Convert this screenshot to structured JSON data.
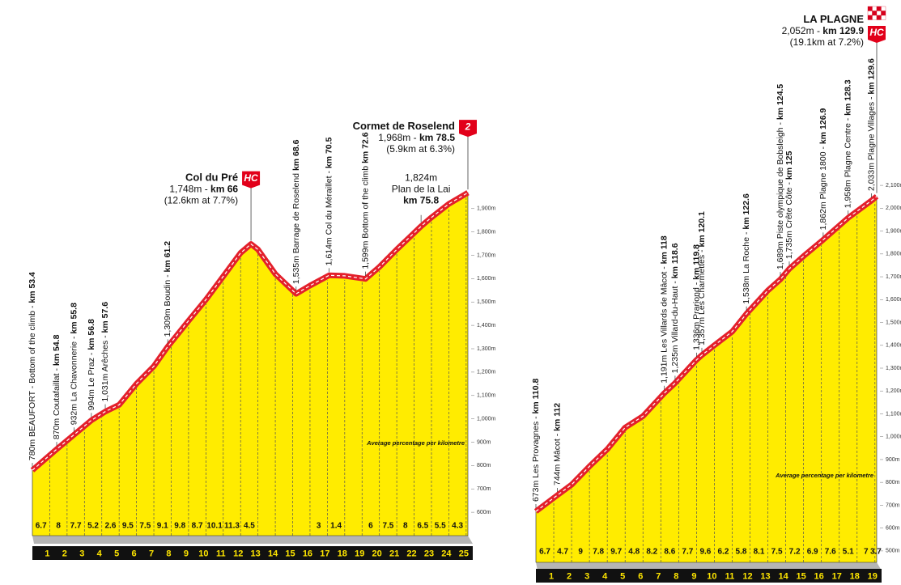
{
  "chart_data": [
    {
      "type": "profile",
      "fill_color": "#ffec00",
      "line_color": "#e3202b",
      "xlim": [
        53.4,
        78.5
      ],
      "ylim": [
        500,
        2100
      ],
      "yticks": [
        {
          "value": 600,
          "label": "600m"
        },
        {
          "value": 700,
          "label": "700m"
        },
        {
          "value": 800,
          "label": "800m"
        },
        {
          "value": 900,
          "label": "900m"
        },
        {
          "value": 1000,
          "label": "1,000m"
        },
        {
          "value": 1100,
          "label": "1,100m"
        },
        {
          "value": 1200,
          "label": "1,200m"
        },
        {
          "value": 1300,
          "label": "1,300m"
        },
        {
          "value": 1400,
          "label": "1,400m"
        },
        {
          "value": 1500,
          "label": "1,500m"
        },
        {
          "value": 1600,
          "label": "1,600m"
        },
        {
          "value": 1700,
          "label": "1,700m"
        },
        {
          "value": 1800,
          "label": "1,800m"
        },
        {
          "value": 1900,
          "label": "1,900m"
        }
      ],
      "x": [
        53.4,
        54.8,
        55.8,
        56.8,
        57.6,
        58.4,
        59.4,
        60.4,
        61.2,
        62.4,
        63.4,
        64.4,
        65.4,
        66,
        66.4,
        67.4,
        68.6,
        69.4,
        70.5,
        71.4,
        72.6,
        73.4,
        74.4,
        75.8,
        76.4,
        77.4,
        78.5
      ],
      "values": [
        780,
        870,
        932,
        994,
        1031,
        1060,
        1150,
        1225,
        1309,
        1420,
        1510,
        1610,
        1710,
        1748,
        1725,
        1620,
        1535,
        1570,
        1614,
        1612,
        1599,
        1650,
        1725,
        1824,
        1862,
        1920,
        1968
      ],
      "categories": [
        "1",
        "2",
        "3",
        "4",
        "5",
        "6",
        "7",
        "8",
        "9",
        "10",
        "11",
        "12",
        "13",
        "14",
        "15",
        "16",
        "17",
        "18",
        "19",
        "20",
        "21",
        "22",
        "23",
        "24",
        "25"
      ],
      "gradients": [
        6.7,
        8,
        7.7,
        5.2,
        2.6,
        9.5,
        7.5,
        9.1,
        9.8,
        8.7,
        10.1,
        11.3,
        4.5,
        null,
        null,
        null,
        3,
        1.4,
        null,
        6,
        7.5,
        8,
        6.5,
        5.5,
        4.3
      ],
      "gradient_note": "Average percentage per kilometre",
      "waypoints": [
        {
          "x": 53.4,
          "elevation": 780,
          "label": "780m BEAUFORT - Bottom of the climb - ",
          "km": "km 53.4"
        },
        {
          "x": 54.8,
          "elevation": 870,
          "label": "870m Coutafaillat - ",
          "km": "km 54.8"
        },
        {
          "x": 55.8,
          "elevation": 932,
          "label": "932m La Chavonnerie - ",
          "km": "km 55.8"
        },
        {
          "x": 56.8,
          "elevation": 994,
          "label": "994m Le Praz - ",
          "km": "km 56.8"
        },
        {
          "x": 57.6,
          "elevation": 1031,
          "label": "1,031m Arêches - ",
          "km": "km 57.6"
        },
        {
          "x": 61.2,
          "elevation": 1309,
          "label": "1,309m Boudin - ",
          "km": "km 61.2"
        },
        {
          "x": 68.6,
          "elevation": 1535,
          "label": "1,535m Barrage de Roselend ",
          "km": "km 68.6"
        },
        {
          "x": 70.5,
          "elevation": 1614,
          "label": "1,614m Col du Méraillet - ",
          "km": "km 70.5"
        },
        {
          "x": 72.6,
          "elevation": 1599,
          "label": "1,599m Bottom of the climb ",
          "km": "km 72.6"
        }
      ],
      "flat_labels": [
        {
          "x": 75.8,
          "elevation": 1824,
          "lines": [
            "1,824m",
            "Plan de la Lai"
          ],
          "km": "km 75.8"
        }
      ],
      "summits": [
        {
          "x": 66,
          "elevation": 1748,
          "name": "Col du Pré",
          "detail": "1,748m - ",
          "km": "km 66",
          "climb": "(12.6km at 7.7%)",
          "category": "HC"
        },
        {
          "x": 78.5,
          "elevation": 1968,
          "name": "Cormet de Roselend",
          "detail": "1,968m - ",
          "km": "km 78.5",
          "climb": "(5.9km at 6.3%)",
          "category": "2"
        }
      ]
    },
    {
      "type": "profile",
      "fill_color": "#ffec00",
      "line_color": "#e3202b",
      "xlim": [
        110.8,
        129.9
      ],
      "ylim": [
        450,
        2150
      ],
      "yticks": [
        {
          "value": 500,
          "label": "500m"
        },
        {
          "value": 600,
          "label": "600m"
        },
        {
          "value": 700,
          "label": "700m"
        },
        {
          "value": 800,
          "label": "800m"
        },
        {
          "value": 900,
          "label": "900m"
        },
        {
          "value": 1000,
          "label": "1,000m"
        },
        {
          "value": 1100,
          "label": "1,100m"
        },
        {
          "value": 1200,
          "label": "1,200m"
        },
        {
          "value": 1300,
          "label": "1,300m"
        },
        {
          "value": 1400,
          "label": "1,400m"
        },
        {
          "value": 1500,
          "label": "1,500m"
        },
        {
          "value": 1600,
          "label": "1,600m"
        },
        {
          "value": 1700,
          "label": "1,700m"
        },
        {
          "value": 1800,
          "label": "1,800m"
        },
        {
          "value": 1900,
          "label": "1,900m"
        },
        {
          "value": 2000,
          "label": "2,000m"
        },
        {
          "value": 2100,
          "label": "2,100m"
        }
      ],
      "x": [
        110.8,
        112,
        112.8,
        113.8,
        114.8,
        115.8,
        116.8,
        118,
        118.6,
        119.8,
        120.1,
        120.8,
        121.8,
        122.6,
        123.8,
        124.5,
        125,
        125.8,
        126.9,
        128.3,
        129.6,
        129.9
      ],
      "values": [
        673,
        744,
        790,
        870,
        945,
        1040,
        1090,
        1191,
        1235,
        1336,
        1357,
        1400,
        1460,
        1538,
        1640,
        1689,
        1735,
        1790,
        1862,
        1958,
        2033,
        2052
      ],
      "categories": [
        "1",
        "2",
        "3",
        "4",
        "5",
        "6",
        "7",
        "8",
        "9",
        "10",
        "11",
        "12",
        "13",
        "14",
        "15",
        "16",
        "17",
        "18",
        "19",
        null
      ],
      "gradients": [
        6.7,
        4.7,
        9,
        7.8,
        9.7,
        4.8,
        8.2,
        8.6,
        7.7,
        9.6,
        6.2,
        5.8,
        8.1,
        7.5,
        7.2,
        6.9,
        7.6,
        5.1,
        7,
        3.7
      ],
      "gradient_note": "Average percentage per kilometre",
      "waypoints": [
        {
          "x": 110.8,
          "elevation": 673,
          "label": "673m Les Provagnes - ",
          "km": "km 110.8"
        },
        {
          "x": 112,
          "elevation": 744,
          "label": "744m Mâcot - ",
          "km": "km 112"
        },
        {
          "x": 118,
          "elevation": 1191,
          "label": "1,191m Les Villards de Mâcot - ",
          "km": "km 118"
        },
        {
          "x": 118.6,
          "elevation": 1235,
          "label": "1,235m Villard-du-Haut - ",
          "km": "km 118.6"
        },
        {
          "x": 119.8,
          "elevation": 1336,
          "label": "1,336m Prariond - ",
          "km": "km 119.8"
        },
        {
          "x": 120.1,
          "elevation": 1357,
          "label": "1,357m Les Charmettes - ",
          "km": "km 120.1"
        },
        {
          "x": 122.6,
          "elevation": 1538,
          "label": "1,538m La Roche - ",
          "km": "km 122.6"
        },
        {
          "x": 124.5,
          "elevation": 1689,
          "label": "1,689m Piste olympique de Bobsleigh - ",
          "km": "km 124.5"
        },
        {
          "x": 125,
          "elevation": 1735,
          "label": "1,735m Crête Côte - ",
          "km": "km 125"
        },
        {
          "x": 126.9,
          "elevation": 1862,
          "label": "1,862m Plagne 1800 - ",
          "km": "km 126.9"
        },
        {
          "x": 128.3,
          "elevation": 1958,
          "label": "1,958m Plagne Centre - ",
          "km": "km 128.3"
        },
        {
          "x": 129.6,
          "elevation": 2033,
          "label": "2,033m Plagne Villages - ",
          "km": "km 129.6"
        }
      ],
      "flat_labels": [],
      "summits": [
        {
          "x": 129.9,
          "elevation": 2052,
          "name": "LA PLAGNE",
          "detail": "2,052m - ",
          "km": "km 129.9",
          "climb": "(19.1km at 7.2%)",
          "category": "HC"
        }
      ]
    }
  ]
}
